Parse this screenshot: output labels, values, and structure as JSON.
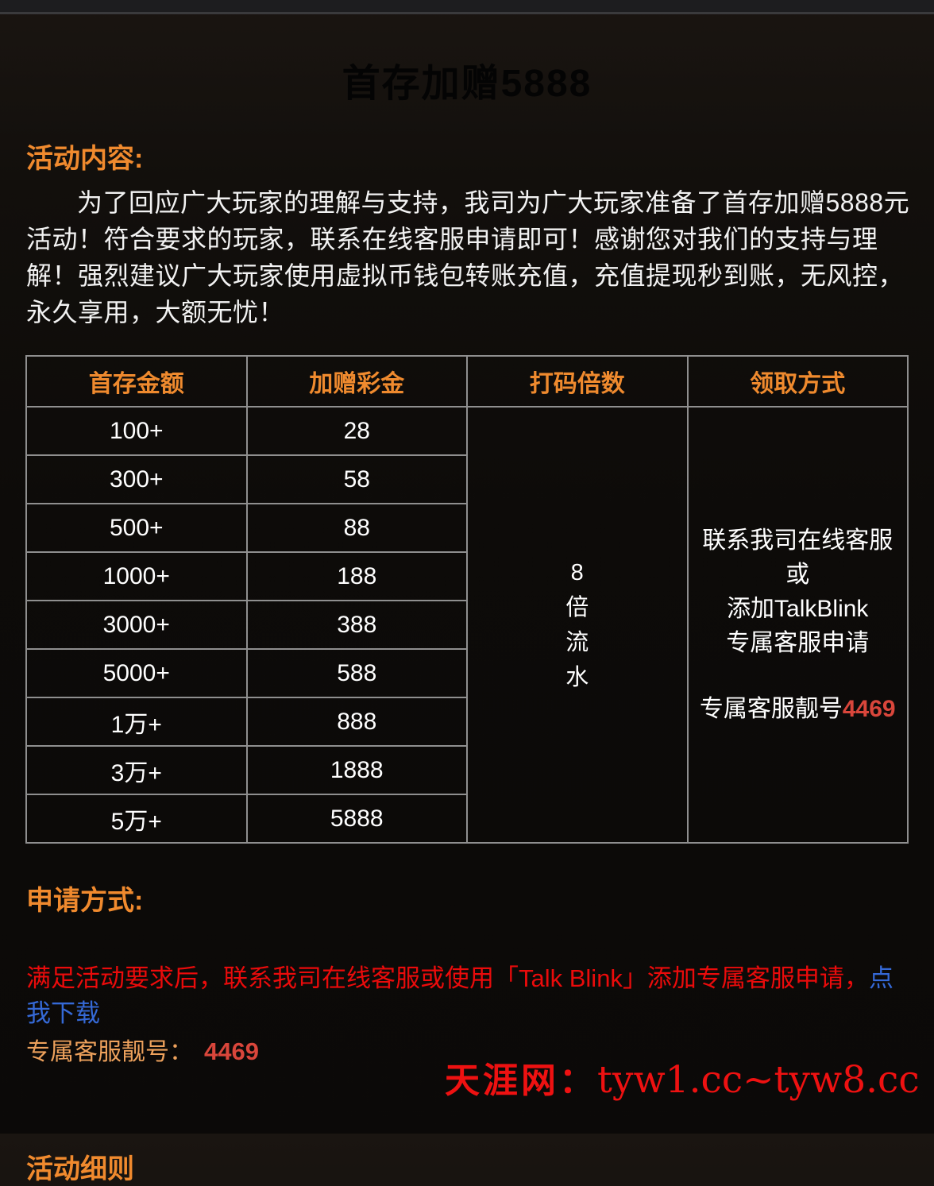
{
  "page": {
    "title": "首存加赠5888",
    "colors": {
      "background": "#0d0b09",
      "accent_orange": "#f08a2e",
      "light_orange": "#eda15c",
      "bright_red": "#ea0b0b",
      "soft_red": "#d9463b",
      "link_blue": "#3569d6",
      "watermark_red": "#ee1111",
      "table_border_gray": "#8f8f8f"
    }
  },
  "content": {
    "heading": "活动内容:",
    "paragraph": "为了回应广大玩家的理解与支持，我司为广大玩家准备了首存加赠5888元活动！符合要求的玩家，联系在线客服申请即可！感谢您对我们的支持与理解！强烈建议广大玩家使用虚拟币钱包转账充值，充值提现秒到账，无风控，永久享用，大额无忧！"
  },
  "table": {
    "headers": [
      "首存金额",
      "加赠彩金",
      "打码倍数",
      "领取方式"
    ],
    "rows": [
      {
        "amount": "100+",
        "bonus": "28"
      },
      {
        "amount": "300+",
        "bonus": "58"
      },
      {
        "amount": "500+",
        "bonus": "88"
      },
      {
        "amount": "1000+",
        "bonus": "188"
      },
      {
        "amount": "3000+",
        "bonus": "388"
      },
      {
        "amount": "5000+",
        "bonus": "588"
      },
      {
        "amount": "1万+",
        "bonus": "888"
      },
      {
        "amount": "3万+",
        "bonus": "1888"
      },
      {
        "amount": "5万+",
        "bonus": "5888"
      }
    ],
    "wagering": [
      "8",
      "倍",
      "流",
      "水"
    ],
    "claim_lines": [
      "联系我司在线客服",
      "或",
      "添加TalkBlink",
      "专属客服申请"
    ],
    "claim_footer_label": "专属客服靓号",
    "claim_footer_number": "4469"
  },
  "apply": {
    "heading": "申请方式:",
    "instructions": "满足活动要求后，联系我司在线客服或使用「Talk Blink」添加专属客服申请，",
    "link_label": "点我下载",
    "service_label": "专属客服靓号：",
    "service_number": "4469"
  },
  "watermark": {
    "site_name": "天涯网：",
    "urls": "tyw1.cc~tyw8.cc"
  },
  "footer": {
    "clipped_heading": "活动细则"
  }
}
